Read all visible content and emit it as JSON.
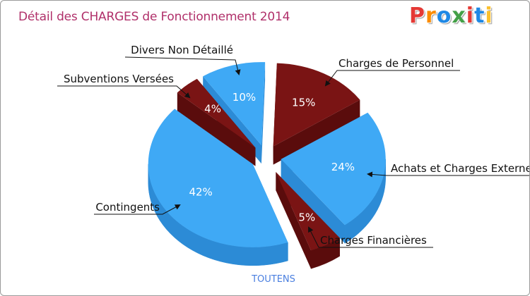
{
  "title": "Détail des CHARGES de Fonctionnement 2014",
  "logo": {
    "text": "Proxiti",
    "letters": [
      "P",
      "r",
      "o",
      "x",
      "i",
      "t",
      "i"
    ],
    "colors": [
      "#e53935",
      "#fb8c00",
      "#1e88e5",
      "#43a047",
      "#e53935",
      "#1e88e5",
      "#fbc02d"
    ]
  },
  "colors": {
    "blue": "#3fa9f5",
    "blue_side": "#2c8bd6",
    "red": "#7a1414",
    "red_side": "#5a0c0c",
    "title": "#b0306a"
  },
  "chart_data": {
    "type": "pie",
    "title": "Détail des CHARGES de Fonctionnement 2014",
    "subtitle": "TOUTENS",
    "slices": [
      {
        "label": "Charges de Personnel",
        "value": 15,
        "value_label": "15%",
        "color": "red"
      },
      {
        "label": "Achats et Charges Externes",
        "value": 24,
        "value_label": "24%",
        "color": "blue"
      },
      {
        "label": "Charges Financières",
        "value": 5,
        "value_label": "5%",
        "color": "red"
      },
      {
        "label": "Contingents",
        "value": 42,
        "value_label": "42%",
        "color": "blue"
      },
      {
        "label": "Subventions Versées",
        "value": 4,
        "value_label": "4%",
        "color": "red"
      },
      {
        "label": "Divers Non Détaillé",
        "value": 10,
        "value_label": "10%",
        "color": "blue"
      }
    ]
  }
}
